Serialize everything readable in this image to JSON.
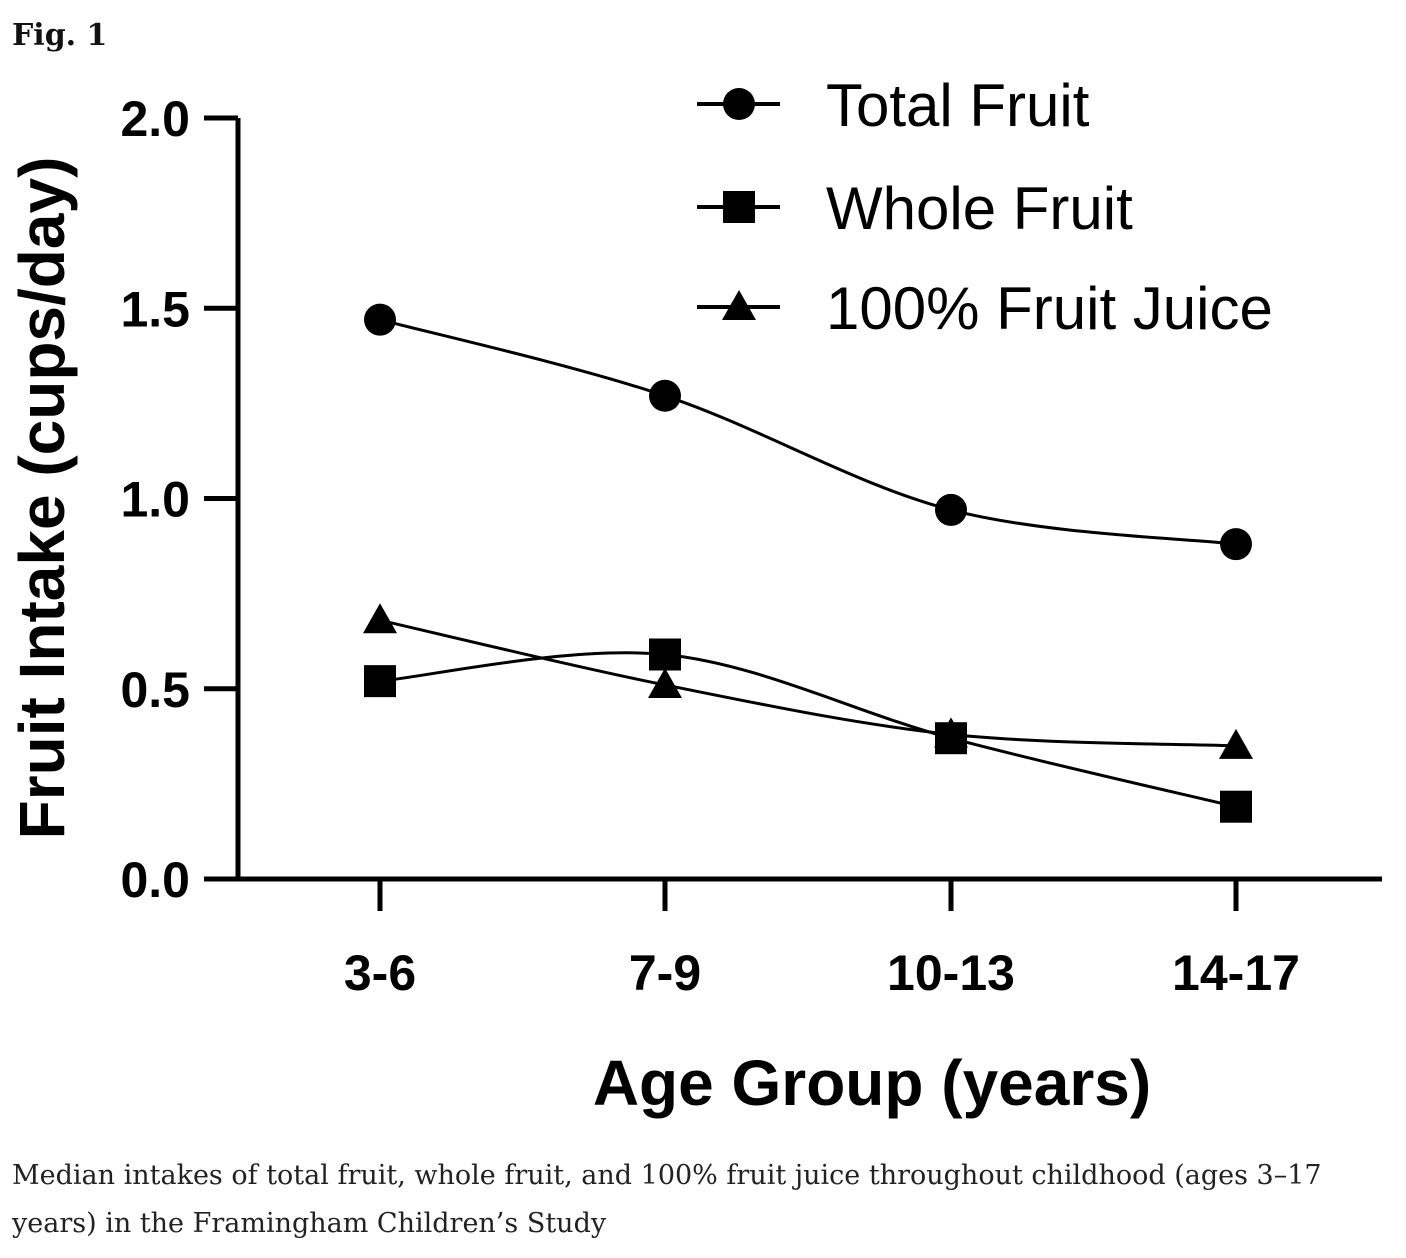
{
  "figure": {
    "label": "Fig. 1",
    "caption": "Median intakes of total fruit, whole fruit, and 100% fruit juice throughout childhood (ages 3–17 years) in the Framingham Children’s Study"
  },
  "chart_data": {
    "type": "line",
    "title": "",
    "xlabel": "Age Group (years)",
    "ylabel": "Fruit Intake (cups/day)",
    "categories": [
      "3-6",
      "7-9",
      "10-13",
      "14-17"
    ],
    "ylim": [
      0,
      2.0
    ],
    "yticks": [
      0.0,
      0.5,
      1.0,
      1.5,
      2.0
    ],
    "ytick_labels": [
      "0.0",
      "0.5",
      "1.0",
      "1.5",
      "2.0"
    ],
    "legend_position": "top-right",
    "series": [
      {
        "name": "Total Fruit",
        "marker": "circle",
        "values": [
          1.47,
          1.27,
          0.97,
          0.88
        ]
      },
      {
        "name": "Whole Fruit",
        "marker": "square",
        "values": [
          0.52,
          0.59,
          0.37,
          0.19
        ]
      },
      {
        "name": "100% Fruit Juice",
        "marker": "triangle",
        "values": [
          0.68,
          0.51,
          0.38,
          0.35
        ]
      }
    ]
  }
}
